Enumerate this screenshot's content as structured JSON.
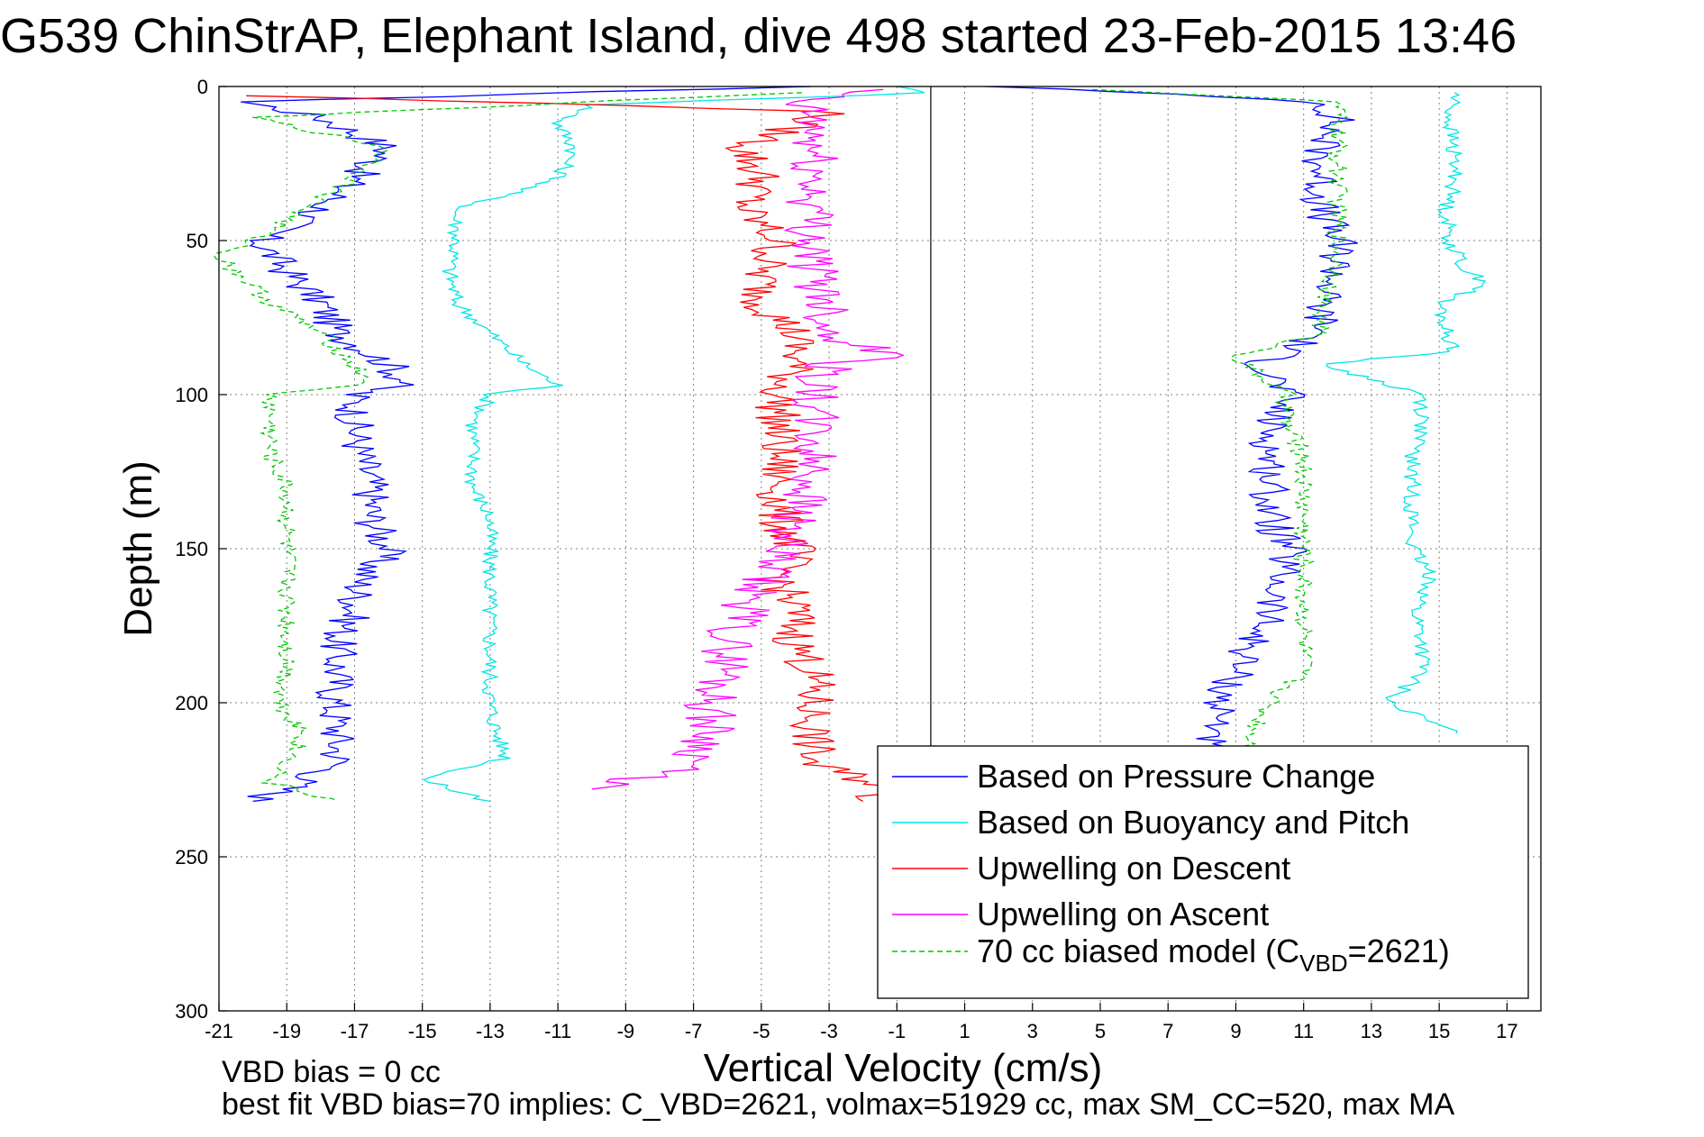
{
  "chart_data": {
    "type": "line",
    "title": "G539 ChinStrAP, Elephant Island, dive 498 started 23-Feb-2015 13:46",
    "xlabel": "Vertical Velocity (cm/s)",
    "ylabel": "Depth (m)",
    "xlim": [
      -21,
      18
    ],
    "ylim": [
      0,
      300
    ],
    "y_reversed": true,
    "x_ticks": [
      -21,
      -19,
      -17,
      -15,
      -13,
      -11,
      -9,
      -7,
      -5,
      -3,
      -1,
      1,
      3,
      5,
      7,
      9,
      11,
      13,
      15,
      17
    ],
    "y_ticks": [
      0,
      50,
      100,
      150,
      200,
      250,
      300
    ],
    "grid": true,
    "legend_position": "bottom-right",
    "notes": [
      "VBD bias = 0 cc",
      "best fit VBD bias=70 implies: C_VBD=2621, volmax=51929 cc, max SM_CC=520, max MA"
    ],
    "series": [
      {
        "name": "Based on Pressure Change",
        "color": "#0000ff",
        "style": "solid",
        "descent": {
          "depth": [
            0,
            5,
            10,
            20,
            30,
            40,
            50,
            60,
            70,
            80,
            90,
            96,
            100,
            110,
            120,
            130,
            140,
            150,
            160,
            170,
            180,
            190,
            200,
            210,
            220,
            228,
            232
          ],
          "vv": [
            -4,
            -20.2,
            -18,
            -16,
            -17,
            -18,
            -19.8,
            -19,
            -18,
            -17.5,
            -16,
            -15.5,
            -17,
            -17,
            -16.8,
            -16.5,
            -16.5,
            -16,
            -16.8,
            -17,
            -17.5,
            -17.5,
            -17.6,
            -17.5,
            -17.5,
            -19,
            -20
          ]
        },
        "ascent": {
          "depth": [
            0,
            5,
            10,
            20,
            30,
            40,
            50,
            60,
            70,
            80,
            90,
            100,
            110,
            120,
            130,
            140,
            150,
            160,
            170,
            180,
            190,
            200,
            210,
            215
          ],
          "vv": [
            2,
            11.5,
            12,
            11.5,
            11.5,
            11.5,
            12,
            12,
            11.5,
            11.5,
            9.8,
            10.5,
            10,
            10,
            10,
            10,
            10.5,
            10.3,
            10,
            9.5,
            9,
            8.5,
            8.5,
            8
          ]
        }
      },
      {
        "name": "Based on Buoyancy and Pitch",
        "color": "#00e5e5",
        "style": "solid",
        "descent": {
          "depth": [
            0,
            2,
            6,
            12,
            20,
            30,
            40,
            50,
            60,
            70,
            80,
            90,
            97,
            100,
            110,
            120,
            130,
            140,
            150,
            160,
            170,
            180,
            190,
            200,
            210,
            218,
            225,
            232
          ],
          "vv": [
            -1,
            0,
            -10,
            -11,
            -10.5,
            -11,
            -14,
            -14,
            -14.2,
            -14,
            -13,
            -12,
            -11,
            -13,
            -13.5,
            -13.5,
            -13.5,
            -13,
            -13,
            -13,
            -13,
            -13,
            -13,
            -13,
            -12.8,
            -12.5,
            -15,
            -13
          ]
        },
        "ascent": {
          "depth": [
            2,
            10,
            20,
            30,
            40,
            50,
            60,
            64,
            70,
            80,
            86,
            90,
            100,
            110,
            120,
            130,
            140,
            150,
            160,
            170,
            180,
            190,
            200,
            210
          ],
          "vv": [
            15.5,
            15.3,
            15.4,
            15.5,
            15.2,
            15.3,
            15.8,
            16.5,
            15,
            15.2,
            15.5,
            11.5,
            14.5,
            14.5,
            14.2,
            14.2,
            14.2,
            14.2,
            14.8,
            14.3,
            14.5,
            14.5,
            13.5,
            15.5
          ]
        }
      },
      {
        "name": "Upwelling on Descent",
        "color": "#ff0000",
        "style": "solid",
        "descent": {
          "depth": [
            3,
            8,
            20,
            30,
            40,
            50,
            60,
            70,
            80,
            90,
            100,
            110,
            120,
            130,
            140,
            150,
            160,
            170,
            180,
            190,
            200,
            210,
            220,
            228,
            232
          ],
          "vv": [
            -20,
            -3,
            -5.5,
            -5,
            -5.5,
            -4.5,
            -5,
            -5,
            -4,
            -4,
            -4.5,
            -4.5,
            -4.5,
            -4.5,
            -4.5,
            -4,
            -4.5,
            -4,
            -4,
            -3.5,
            -3.5,
            -3.5,
            -3.5,
            -1,
            -2
          ]
        }
      },
      {
        "name": "Upwelling on Ascent",
        "color": "#ff00ff",
        "style": "solid",
        "ascent": {
          "depth": [
            1,
            5,
            10,
            20,
            30,
            40,
            50,
            60,
            70,
            80,
            88,
            90,
            100,
            110,
            120,
            130,
            140,
            150,
            160,
            170,
            180,
            190,
            200,
            210,
            220,
            228
          ],
          "vv": [
            -2,
            -4,
            -3.5,
            -3.5,
            -3.5,
            -3.5,
            -3.5,
            -3.5,
            -3,
            -3,
            -1,
            -3,
            -3.5,
            -3.5,
            -3.5,
            -3.5,
            -4,
            -4.5,
            -5,
            -5.5,
            -6,
            -6,
            -6.5,
            -6.5,
            -7,
            -10
          ]
        }
      },
      {
        "name": "70 cc biased model (C_VBD=2621)",
        "color": "#00c800",
        "style": "dashed",
        "descent": {
          "depth": [
            2,
            10,
            20,
            30,
            40,
            50,
            55,
            60,
            70,
            80,
            91,
            96,
            100,
            110,
            120,
            130,
            140,
            150,
            160,
            170,
            180,
            190,
            200,
            210,
            220,
            226,
            232
          ],
          "vv": [
            -4,
            -20,
            -16,
            -17,
            -18.5,
            -20,
            -21,
            -20.5,
            -19.5,
            -18,
            -17,
            -16.5,
            -19.5,
            -19.5,
            -19.5,
            -19,
            -19,
            -19,
            -19,
            -19,
            -19,
            -19,
            -19.2,
            -18.5,
            -19,
            -19.5,
            -17.5
          ]
        },
        "ascent": {
          "depth": [
            1,
            5,
            20,
            40,
            60,
            70,
            80,
            88,
            92,
            100,
            110,
            120,
            130,
            140,
            150,
            160,
            170,
            180,
            190,
            200,
            210,
            215
          ],
          "vv": [
            5,
            12,
            12,
            12,
            12,
            11.5,
            11.5,
            9,
            9.5,
            10.5,
            10.5,
            11,
            11,
            11,
            11,
            11,
            11,
            11,
            11,
            10,
            9.5,
            9.5
          ]
        }
      }
    ]
  }
}
